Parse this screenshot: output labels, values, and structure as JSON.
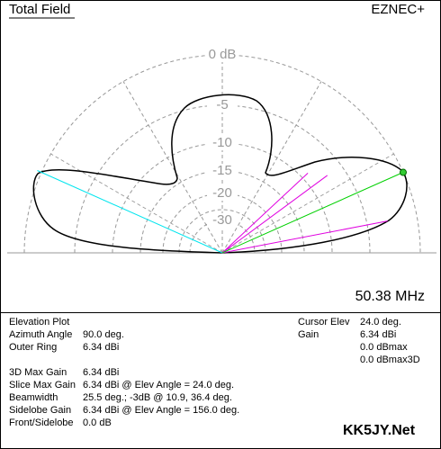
{
  "header": {
    "title": "Total Field",
    "program": "EZNEC+"
  },
  "plot": {
    "ring_labels": [
      "0 dB",
      "-5",
      "-10",
      "-15",
      "-20",
      "-30"
    ],
    "frequency": "50.38 MHz"
  },
  "info": {
    "left": [
      {
        "label": "Elevation Plot"
      },
      {
        "label": "Azimuth Angle",
        "value": "90.0 deg."
      },
      {
        "label": "Outer Ring",
        "value": "6.34 dBi"
      },
      {
        "label": "3D Max Gain",
        "value": "6.34 dBi"
      },
      {
        "label": "Slice Max Gain",
        "value": "6.34 dBi @ Elev Angle = 24.0 deg."
      },
      {
        "label": "Beamwidth",
        "value": "25.5 deg.; -3dB @ 10.9, 36.4 deg."
      },
      {
        "label": "Sidelobe Gain",
        "value": "6.34 dBi @ Elev Angle = 156.0 deg."
      },
      {
        "label": "Front/Sidelobe",
        "value": "0.0 dB"
      }
    ],
    "right": [
      {
        "label": "Cursor Elev",
        "value": "24.0 deg."
      },
      {
        "label": "Gain",
        "value": "6.34 dBi"
      },
      {
        "value": "0.0 dBmax"
      },
      {
        "value": "0.0 dBmax3D"
      }
    ]
  },
  "footer": {
    "brand": "KK5JY.Net"
  }
}
